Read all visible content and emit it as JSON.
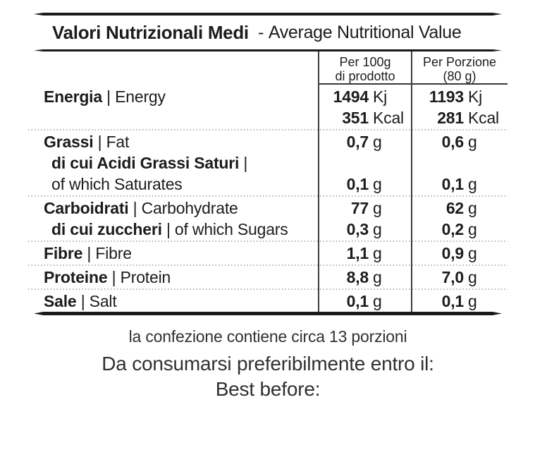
{
  "title": {
    "it": "Valori Nutrizionali Medi",
    "sep": "  - ",
    "en": "Average Nutritional Value"
  },
  "table": {
    "col_headers": [
      {
        "line1": "Per 100g",
        "line2": "di prodotto"
      },
      {
        "line1": "Per Porzione",
        "line2": "(80 g)"
      }
    ],
    "lines": [
      {
        "bold": "Energia",
        "sep": " | ",
        "reg": "Energy",
        "n1": "1494",
        "u1": "Kj",
        "n2": "1193",
        "u2": "Kj"
      },
      {
        "bold": "",
        "sep": "",
        "reg": "",
        "n1": "351",
        "u1": "Kcal",
        "n2": "281",
        "u2": "Kcal"
      },
      {
        "bold": "Grassi",
        "sep": " | ",
        "reg": "Fat",
        "n1": "0,7",
        "u1": "g",
        "n2": "0,6",
        "u2": "g"
      },
      {
        "bold": "di cui Acidi Grassi Saturi",
        "sep": " |",
        "reg": "",
        "n1": "",
        "u1": "",
        "n2": "",
        "u2": ""
      },
      {
        "bold": "",
        "sep": "",
        "reg": "of which Saturates",
        "n1": "0,1",
        "u1": "g",
        "n2": "0,1",
        "u2": "g"
      },
      {
        "bold": "Carboidrati",
        "sep": " | ",
        "reg": "Carbohydrate",
        "n1": "77",
        "u1": "g",
        "n2": "62",
        "u2": "g"
      },
      {
        "bold": "di cui zuccheri",
        "sep": " | ",
        "reg": "of which Sugars",
        "n1": "0,3",
        "u1": "g",
        "n2": "0,2",
        "u2": "g"
      },
      {
        "bold": "Fibre",
        "sep": " | ",
        "reg": "Fibre",
        "n1": "1,1",
        "u1": "g",
        "n2": "0,9",
        "u2": "g"
      },
      {
        "bold": "Proteine",
        "sep": " | ",
        "reg": "Protein",
        "n1": "8,8",
        "u1": "g",
        "n2": "7,0",
        "u2": "g"
      },
      {
        "bold": "Sale",
        "sep": " | ",
        "reg": "Salt",
        "n1": "0,1",
        "u1": "g",
        "n2": "0,1",
        "u2": "g"
      }
    ]
  },
  "footer": {
    "servings": "la confezione contiene circa 13 porzioni",
    "best_before_it": "Da consumarsi preferibilmente entro il:",
    "best_before_en": "Best before:"
  }
}
